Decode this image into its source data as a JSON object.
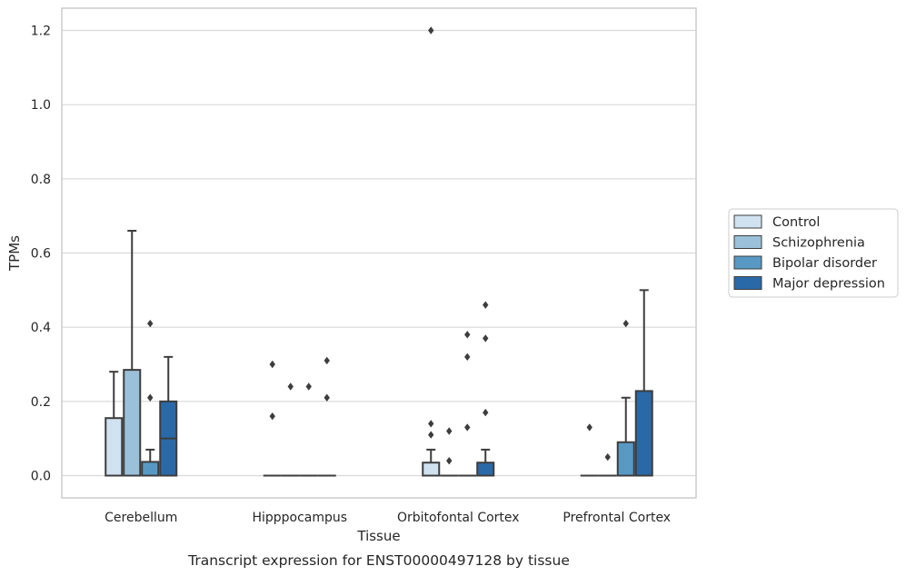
{
  "chart_data": {
    "type": "box",
    "title": "",
    "caption": "Transcript expression for ENST00000497128 by tissue",
    "xlabel": "Tissue",
    "ylabel": "TPMs",
    "ylim": [
      -0.06,
      1.26
    ],
    "yticks": [
      0.0,
      0.2,
      0.4,
      0.6,
      0.8,
      1.0,
      1.2
    ],
    "ytick_labels": [
      "0.0",
      "0.2",
      "0.4",
      "0.6",
      "0.8",
      "1.0",
      "1.2"
    ],
    "grid": "horizontal",
    "legend_position": "right",
    "categories": [
      "Cerebellum",
      "Hipppocampus",
      "Orbitofontal Cortex",
      "Prefrontal Cortex"
    ],
    "series": [
      {
        "name": "Control",
        "color": "#d0e1f0",
        "boxes": [
          {
            "q1": 0.0,
            "median": 0.0,
            "q3": 0.155,
            "whislo": 0.0,
            "whishi": 0.28,
            "fliers": []
          },
          {
            "q1": 0.0,
            "median": 0.0,
            "q3": 0.0,
            "whislo": 0.0,
            "whishi": 0.0,
            "fliers": [
              0.3,
              0.16
            ]
          },
          {
            "q1": 0.0,
            "median": 0.0,
            "q3": 0.035,
            "whislo": 0.0,
            "whishi": 0.07,
            "fliers": [
              1.2,
              0.14,
              0.11
            ]
          },
          {
            "q1": 0.0,
            "median": 0.0,
            "q3": 0.0,
            "whislo": 0.0,
            "whishi": 0.0,
            "fliers": [
              0.13
            ]
          }
        ]
      },
      {
        "name": "Schizophrenia",
        "color": "#9ac1d9",
        "boxes": [
          {
            "q1": 0.0,
            "median": 0.0,
            "q3": 0.285,
            "whislo": 0.0,
            "whishi": 0.66,
            "fliers": []
          },
          {
            "q1": 0.0,
            "median": 0.0,
            "q3": 0.0,
            "whislo": 0.0,
            "whishi": 0.0,
            "fliers": [
              0.24
            ]
          },
          {
            "q1": 0.0,
            "median": 0.0,
            "q3": 0.0,
            "whislo": 0.0,
            "whishi": 0.0,
            "fliers": [
              0.12,
              0.04
            ]
          },
          {
            "q1": 0.0,
            "median": 0.0,
            "q3": 0.0,
            "whislo": 0.0,
            "whishi": 0.0,
            "fliers": [
              0.05
            ]
          }
        ]
      },
      {
        "name": "Bipolar disorder",
        "color": "#5899c4",
        "boxes": [
          {
            "q1": 0.0,
            "median": 0.0,
            "q3": 0.037,
            "whislo": 0.0,
            "whishi": 0.07,
            "fliers": [
              0.41,
              0.21
            ]
          },
          {
            "q1": 0.0,
            "median": 0.0,
            "q3": 0.0,
            "whislo": 0.0,
            "whishi": 0.0,
            "fliers": [
              0.24
            ]
          },
          {
            "q1": 0.0,
            "median": 0.0,
            "q3": 0.0,
            "whislo": 0.0,
            "whishi": 0.0,
            "fliers": [
              0.38,
              0.32,
              0.13
            ]
          },
          {
            "q1": 0.0,
            "median": 0.0,
            "q3": 0.09,
            "whislo": 0.0,
            "whishi": 0.21,
            "fliers": [
              0.41
            ]
          }
        ]
      },
      {
        "name": "Major depression",
        "color": "#2a69a8",
        "boxes": [
          {
            "q1": 0.0,
            "median": 0.1,
            "q3": 0.2,
            "whislo": 0.0,
            "whishi": 0.32,
            "fliers": []
          },
          {
            "q1": 0.0,
            "median": 0.0,
            "q3": 0.0,
            "whislo": 0.0,
            "whishi": 0.0,
            "fliers": [
              0.31,
              0.21
            ]
          },
          {
            "q1": 0.0,
            "median": 0.0,
            "q3": 0.035,
            "whislo": 0.0,
            "whishi": 0.07,
            "fliers": [
              0.46,
              0.37,
              0.17
            ]
          },
          {
            "q1": 0.0,
            "median": 0.0,
            "q3": 0.228,
            "whislo": 0.0,
            "whishi": 0.5,
            "fliers": []
          }
        ]
      }
    ]
  },
  "colors": {
    "grid": "#d9d9d9",
    "frame": "#cccccc",
    "box_edge": "#3d3d3d",
    "text": "#262626"
  }
}
